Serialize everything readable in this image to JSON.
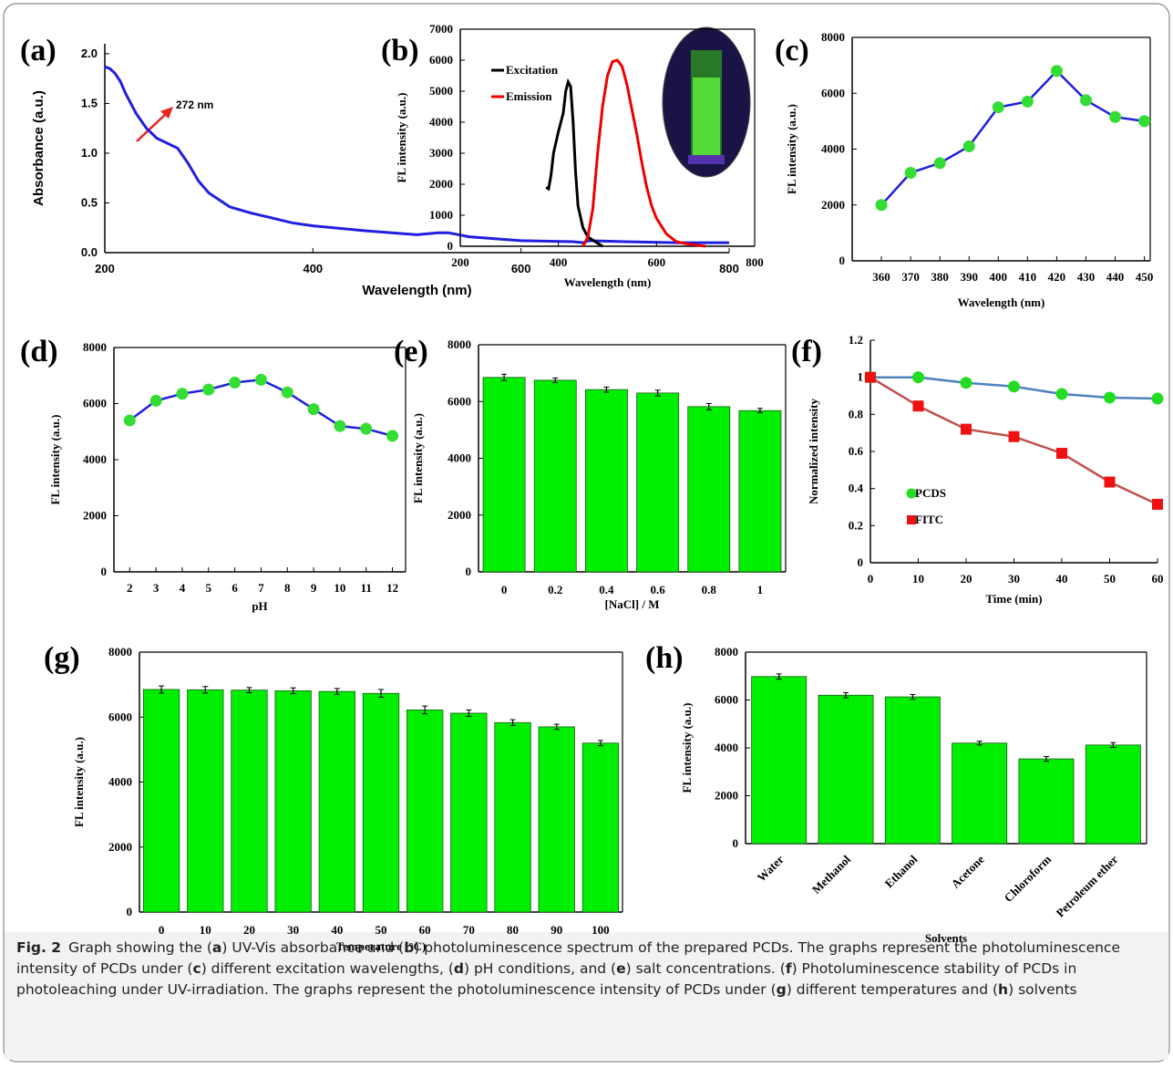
{
  "chart_data": [
    {
      "type": "line",
      "panel_label": "(a)",
      "x_label": "Wavelength (nm)",
      "y_label": "Absorbance (a.u.)",
      "annotation": "272 nm",
      "x": [
        200,
        205,
        210,
        215,
        220,
        230,
        240,
        250,
        260,
        270,
        280,
        290,
        300,
        320,
        340,
        360,
        380,
        400,
        450,
        500,
        520,
        530,
        550,
        600,
        650,
        660,
        665,
        700,
        750,
        800
      ],
      "values": [
        1.87,
        1.85,
        1.8,
        1.72,
        1.6,
        1.4,
        1.25,
        1.15,
        1.1,
        1.05,
        0.9,
        0.72,
        0.6,
        0.46,
        0.4,
        0.35,
        0.3,
        0.27,
        0.22,
        0.18,
        0.2,
        0.2,
        0.16,
        0.12,
        0.11,
        0.1,
        0.12,
        0.11,
        0.1,
        0.1
      ],
      "color": "#1f1fe0",
      "xlim": [
        200,
        800
      ],
      "xticks": [
        200,
        400,
        600,
        800
      ],
      "ylim": [
        0,
        2.1
      ],
      "yticks": [
        {
          "value": 0,
          "label": "0.0"
        },
        0.5,
        {
          "value": 1,
          "label": "1.0"
        },
        1.5,
        {
          "value": 2,
          "label": "2.0"
        }
      ]
    },
    {
      "type": "line",
      "panel_label": "(b)",
      "x_label": "Wavelength (nm)",
      "y_label": "FL intensity (a.u.)",
      "legend": "upper left",
      "series": [
        {
          "name": "Excitation",
          "color": "#000000",
          "x": [
            375,
            380,
            385,
            390,
            400,
            405,
            410,
            415,
            420,
            425,
            430,
            435,
            440,
            450,
            460,
            470,
            480,
            490
          ],
          "values": [
            1900,
            1850,
            2300,
            3000,
            3700,
            4000,
            4300,
            5000,
            5300,
            5150,
            4000,
            2400,
            1300,
            600,
            300,
            200,
            100,
            0
          ]
        },
        {
          "name": "Emission",
          "color": "#ee0000",
          "x": [
            450,
            460,
            470,
            480,
            490,
            500,
            510,
            520,
            530,
            540,
            550,
            560,
            570,
            580,
            590,
            600,
            620,
            640,
            660,
            700
          ],
          "values": [
            0,
            300,
            1200,
            3000,
            4500,
            5500,
            5950,
            6000,
            5800,
            5200,
            4400,
            3600,
            2700,
            1900,
            1300,
            900,
            400,
            150,
            80,
            0
          ]
        }
      ],
      "xlim": [
        200,
        800
      ],
      "xticks": [
        200,
        400,
        600,
        800
      ],
      "ylim": [
        0,
        7000
      ],
      "yticks": [
        0,
        1000,
        2000,
        3000,
        4000,
        5000,
        6000,
        7000
      ]
    },
    {
      "type": "line",
      "panel_label": "(c)",
      "x_label": "Wavelength (nm)",
      "y_label": "FL intensity (a.u.)",
      "x": [
        360,
        370,
        380,
        390,
        400,
        410,
        420,
        430,
        440,
        450
      ],
      "values": [
        2000,
        3150,
        3500,
        4100,
        5500,
        5700,
        6800,
        5750,
        5150,
        5000
      ],
      "color": "#1f1fe0",
      "marker": "circle",
      "marker_color": "#33dd33",
      "xlim": [
        350,
        452
      ],
      "xticks": [
        360,
        370,
        380,
        390,
        400,
        410,
        420,
        430,
        440,
        450
      ],
      "ylim": [
        0,
        8000
      ],
      "yticks": [
        0,
        2000,
        4000,
        6000,
        8000
      ]
    },
    {
      "type": "line",
      "panel_label": "(d)",
      "x_label": "pH",
      "y_label": "FL intensity (a.u.)",
      "x": [
        2,
        3,
        4,
        5,
        6,
        7,
        8,
        9,
        10,
        11,
        12
      ],
      "values": [
        5400,
        6100,
        6350,
        6500,
        6750,
        6850,
        6400,
        5800,
        5200,
        5100,
        4850
      ],
      "color": "#1f1fe0",
      "marker": "circle",
      "marker_color": "#33dd33",
      "xlim": [
        1.4,
        12.5
      ],
      "xticks": [
        2,
        3,
        4,
        5,
        6,
        7,
        8,
        9,
        10,
        11,
        12
      ],
      "ylim": [
        0,
        8000
      ],
      "yticks": [
        0,
        2000,
        4000,
        6000,
        8000
      ]
    },
    {
      "type": "bar",
      "panel_label": "(e)",
      "x_label": "[NaCl] / M",
      "y_label": "FL intensity (a.u.)",
      "categories": [
        "0",
        "0.2",
        "0.4",
        "0.6",
        "0.8",
        "1"
      ],
      "values": [
        6850,
        6750,
        6420,
        6300,
        5820,
        5680
      ],
      "errors": [
        110,
        80,
        90,
        100,
        110,
        80
      ],
      "color": "#00ee00",
      "ylim": [
        0,
        8000
      ],
      "yticks": [
        0,
        2000,
        4000,
        6000,
        8000
      ]
    },
    {
      "type": "line",
      "panel_label": "(f)",
      "x_label": "Time (min)",
      "y_label": "Normalized intensity",
      "legend": "center left",
      "x": [
        0,
        10,
        20,
        30,
        40,
        50,
        60
      ],
      "series": [
        {
          "name": "PCDS",
          "color": "#4f81bd",
          "marker": "circle",
          "marker_color": "#22dd22",
          "values": [
            1,
            1,
            0.97,
            0.95,
            0.91,
            0.89,
            0.885
          ]
        },
        {
          "name": "FITC",
          "color": "#c0504d",
          "marker": "square",
          "marker_color": "#ee1111",
          "values": [
            1,
            0.845,
            0.72,
            0.68,
            0.59,
            0.435,
            0.315
          ]
        }
      ],
      "xlim": [
        0,
        60
      ],
      "xticks": [
        0,
        10,
        20,
        30,
        40,
        50,
        60
      ],
      "ylim": [
        0,
        1.2
      ],
      "yticks": [
        0,
        0.2,
        0.4,
        0.6,
        0.8,
        1,
        1.2
      ]
    },
    {
      "type": "bar",
      "panel_label": "(g)",
      "x_label": "Temperature (°C)",
      "y_label": "FL intensity (a.u.)",
      "categories": [
        "0",
        "10",
        "20",
        "30",
        "40",
        "50",
        "60",
        "70",
        "80",
        "90",
        "100"
      ],
      "values": [
        6850,
        6840,
        6830,
        6810,
        6790,
        6730,
        6220,
        6120,
        5830,
        5700,
        5200
      ],
      "errors": [
        110,
        100,
        80,
        90,
        90,
        120,
        120,
        100,
        90,
        80,
        80
      ],
      "color": "#00ee00",
      "ylim": [
        0,
        8000
      ],
      "yticks": [
        0,
        2000,
        4000,
        6000,
        8000
      ]
    },
    {
      "type": "bar",
      "panel_label": "(h)",
      "x_label": "Solvents",
      "y_label": "FL intensity (a.u.)",
      "categories": [
        "Water",
        "Methanol",
        "Ethanol",
        "Acetone",
        "Chloroform",
        "Petroleum ether"
      ],
      "values": [
        6980,
        6200,
        6130,
        4200,
        3540,
        4120
      ],
      "errors": [
        110,
        110,
        100,
        80,
        100,
        100
      ],
      "color": "#00ee00",
      "ylim": [
        0,
        8000
      ],
      "yticks": [
        0,
        2000,
        4000,
        6000,
        8000
      ]
    }
  ],
  "caption": {
    "label": "Fig. 2",
    "parts": [
      "Graph showing the (",
      "a",
      ") UV-Vis absorbance and (",
      "b",
      ") photoluminescence spectrum of the prepared PCDs. The graphs represent the photoluminescence intensity of PCDs under (",
      "c",
      ") different excitation wavelengths, (",
      "d",
      ") pH conditions, and (",
      "e",
      ") salt concentrations. (",
      "f",
      ") Photoluminescence stability of PCDs in photoleaching under UV-irradiation. The graphs represent the photoluminescence intensity of PCDs under (",
      "g",
      ") different temperatures and (",
      "h",
      ") solvents"
    ]
  }
}
